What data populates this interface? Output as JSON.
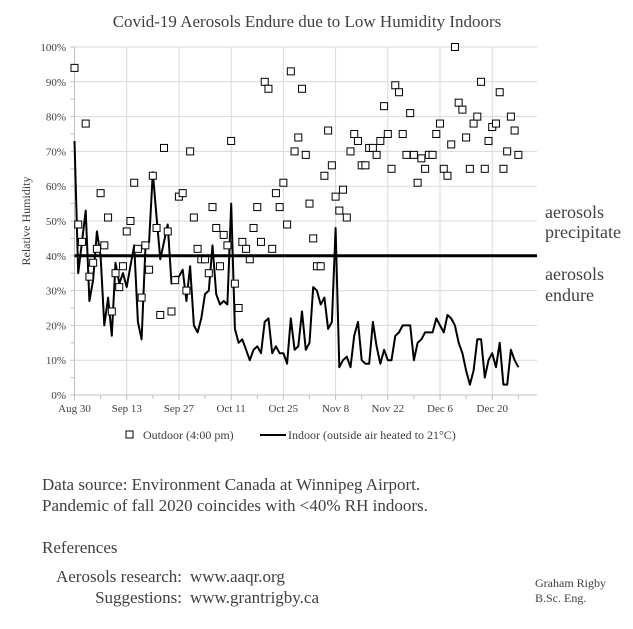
{
  "chart_data": {
    "type": "scatter+line",
    "title": "Covid-19 Aerosols Endure due to Low Humidity Indoors",
    "ylabel": "Relative Humidity",
    "xlabel": "",
    "ylim": [
      0,
      100
    ],
    "y_ticks": [
      "0%",
      "10%",
      "20%",
      "30%",
      "40%",
      "50%",
      "60%",
      "70%",
      "80%",
      "90%",
      "100%"
    ],
    "xlim": [
      "Aug 30",
      "Jan 1"
    ],
    "x_ticks": [
      "Aug 30",
      "Sep 13",
      "Sep 27",
      "Oct 11",
      "Oct 25",
      "Nov 8",
      "Nov 22",
      "Dec 6",
      "Dec 20"
    ],
    "grid": true,
    "legend_position": "bottom",
    "threshold": {
      "value": 40,
      "labels": {
        "above": [
          "aerosols",
          "precipitate"
        ],
        "below": [
          "aerosols",
          "endure"
        ]
      }
    },
    "x": [
      "Aug 30",
      "Aug 31",
      "Sep 1",
      "Sep 2",
      "Sep 3",
      "Sep 4",
      "Sep 5",
      "Sep 6",
      "Sep 7",
      "Sep 8",
      "Sep 9",
      "Sep 10",
      "Sep 11",
      "Sep 12",
      "Sep 13",
      "Sep 14",
      "Sep 15",
      "Sep 16",
      "Sep 17",
      "Sep 18",
      "Sep 19",
      "Sep 20",
      "Sep 21",
      "Sep 22",
      "Sep 23",
      "Sep 24",
      "Sep 25",
      "Sep 26",
      "Sep 27",
      "Sep 28",
      "Sep 29",
      "Sep 30",
      "Oct 1",
      "Oct 2",
      "Oct 3",
      "Oct 4",
      "Oct 5",
      "Oct 6",
      "Oct 7",
      "Oct 8",
      "Oct 9",
      "Oct 10",
      "Oct 11",
      "Oct 12",
      "Oct 13",
      "Oct 14",
      "Oct 15",
      "Oct 16",
      "Oct 17",
      "Oct 18",
      "Oct 19",
      "Oct 20",
      "Oct 21",
      "Oct 22",
      "Oct 23",
      "Oct 24",
      "Oct 25",
      "Oct 26",
      "Oct 27",
      "Oct 28",
      "Oct 29",
      "Oct 30",
      "Oct 31",
      "Nov 1",
      "Nov 2",
      "Nov 3",
      "Nov 4",
      "Nov 5",
      "Nov 6",
      "Nov 7",
      "Nov 8",
      "Nov 9",
      "Nov 10",
      "Nov 11",
      "Nov 12",
      "Nov 13",
      "Nov 14",
      "Nov 15",
      "Nov 16",
      "Nov 17",
      "Nov 18",
      "Nov 19",
      "Nov 20",
      "Nov 21",
      "Nov 22",
      "Nov 23",
      "Nov 24",
      "Nov 25",
      "Nov 26",
      "Nov 27",
      "Nov 28",
      "Nov 29",
      "Nov 30",
      "Dec 1",
      "Dec 2",
      "Dec 3",
      "Dec 4",
      "Dec 5",
      "Dec 6",
      "Dec 7",
      "Dec 8",
      "Dec 9",
      "Dec 10",
      "Dec 11",
      "Dec 12",
      "Dec 13",
      "Dec 14",
      "Dec 15",
      "Dec 16",
      "Dec 17",
      "Dec 18",
      "Dec 19",
      "Dec 20",
      "Dec 21",
      "Dec 22",
      "Dec 23",
      "Dec 24",
      "Dec 25",
      "Dec 26",
      "Dec 27"
    ],
    "series": [
      {
        "name": "Outdoor (4:00 pm)",
        "marker": "square",
        "color": "#000000",
        "values": [
          94,
          49,
          44,
          78,
          34,
          38,
          42,
          58,
          43,
          51,
          24,
          35,
          31,
          37,
          47,
          50,
          61,
          42,
          28,
          43,
          36,
          63,
          48,
          23,
          71,
          47,
          24,
          33,
          57,
          58,
          30,
          70,
          51,
          42,
          39,
          39,
          35,
          54,
          48,
          37,
          46,
          43,
          73,
          32,
          25,
          44,
          42,
          39,
          48,
          54,
          44,
          90,
          88,
          42,
          58,
          54,
          61,
          49,
          93,
          70,
          74,
          88,
          69,
          55,
          45,
          37,
          37,
          63,
          76,
          66,
          57,
          53,
          59,
          51,
          70,
          75,
          73,
          66,
          66,
          71,
          71,
          69,
          73,
          83,
          75,
          65,
          89,
          87,
          75,
          69,
          81,
          69,
          61,
          68,
          65,
          69,
          69,
          75,
          78,
          65,
          63,
          72,
          100,
          84,
          82,
          74,
          65,
          78,
          80,
          90,
          65,
          73,
          77,
          78,
          87,
          65,
          70,
          80,
          76,
          69
        ]
      },
      {
        "name": "Indoor (outside air heated to 21°C)",
        "marker": "line",
        "color": "#000000",
        "values": [
          73,
          35,
          44,
          53,
          27,
          33,
          47,
          40,
          20,
          28,
          17,
          38,
          32,
          35,
          31,
          37,
          43,
          21,
          16,
          42,
          44,
          64,
          51,
          39,
          44,
          49,
          32,
          34,
          34,
          36,
          27,
          37,
          20,
          18,
          22,
          29,
          30,
          43,
          29,
          26,
          27,
          26,
          55,
          19,
          15,
          16,
          13,
          10,
          13,
          14,
          12,
          21,
          22,
          12,
          14,
          12,
          12,
          9,
          22,
          13,
          14,
          24,
          13,
          15,
          31,
          30,
          26,
          28,
          19,
          21,
          48,
          8,
          10,
          11,
          8,
          17,
          21,
          10,
          9,
          9,
          21,
          14,
          9,
          13,
          10,
          10,
          17,
          18,
          20,
          20,
          20,
          10,
          15,
          16,
          18,
          18,
          18,
          22,
          20,
          18,
          23,
          22,
          20,
          15,
          12,
          7,
          3,
          7,
          16,
          16,
          5,
          10,
          12,
          8,
          15,
          3,
          3,
          13,
          10,
          8
        ]
      }
    ]
  },
  "notes": {
    "source": "Data source: Environment Canada at Winnipeg Airport.",
    "pandemic": "Pandemic of fall 2020 coincides with <40% RH indoors.",
    "references_heading": "References",
    "ref1_label": "Aerosols research:",
    "ref1_link": "www.aaqr.org",
    "ref2_label": "Suggestions:",
    "ref2_link": "www.grantrigby.ca"
  },
  "author": {
    "name": "Graham Rigby",
    "credential": "B.Sc. Eng."
  },
  "colors": {
    "text": "#404040",
    "grid": "#d9d9d9",
    "series": "#000000"
  }
}
